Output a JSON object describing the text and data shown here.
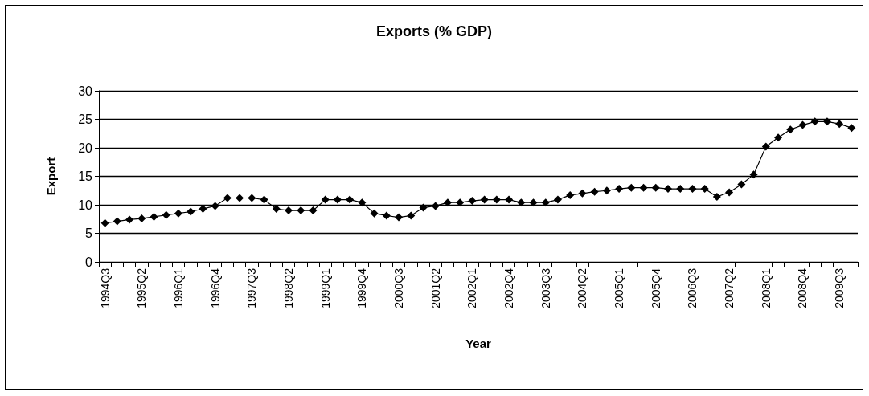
{
  "chart_data": {
    "type": "line",
    "title": "Exports (% GDP)",
    "xlabel": "Year",
    "ylabel": "Export",
    "categories": [
      "1994Q3",
      null,
      null,
      "1995Q2",
      null,
      null,
      "1996Q1",
      null,
      null,
      "1996Q4",
      null,
      null,
      "1997Q3",
      null,
      null,
      "1998Q2",
      null,
      null,
      "1999Q1",
      null,
      null,
      "1999Q4",
      null,
      null,
      "2000Q3",
      null,
      null,
      "2001Q2",
      null,
      null,
      "2002Q1",
      null,
      null,
      "2002Q4",
      null,
      null,
      "2003Q3",
      null,
      null,
      "2004Q2",
      null,
      null,
      "2005Q1",
      null,
      null,
      "2005Q4",
      null,
      null,
      "2006Q3",
      null,
      null,
      "2007Q2",
      null,
      null,
      "2008Q1",
      null,
      null,
      "2008Q4",
      null,
      null,
      "2009Q3",
      null
    ],
    "series": [
      {
        "color": "#000000",
        "values": [
          6.8,
          7.1,
          7.4,
          7.6,
          7.9,
          8.2,
          8.5,
          8.8,
          9.3,
          9.8,
          11.2,
          11.2,
          11.2,
          10.9,
          9.3,
          9.0,
          9.0,
          9.0,
          10.9,
          10.9,
          10.9,
          10.4,
          8.5,
          8.1,
          7.8,
          8.1,
          9.5,
          9.8,
          10.4,
          10.4,
          10.7,
          10.9,
          10.9,
          10.9,
          10.4,
          10.4,
          10.4,
          10.9,
          11.7,
          12.0,
          12.3,
          12.5,
          12.8,
          13.0,
          13.0,
          13.0,
          12.8,
          12.8,
          12.8,
          12.8,
          11.4,
          12.2,
          13.6,
          15.3,
          20.2,
          21.8,
          23.2,
          24.0,
          24.6,
          24.6,
          24.2,
          23.5
        ]
      }
    ],
    "ylim": [
      0,
      30
    ],
    "yticks": [
      0,
      5,
      10,
      15,
      20,
      25,
      30
    ],
    "grid": "y",
    "marker": "diamond",
    "line_style": "solid"
  }
}
